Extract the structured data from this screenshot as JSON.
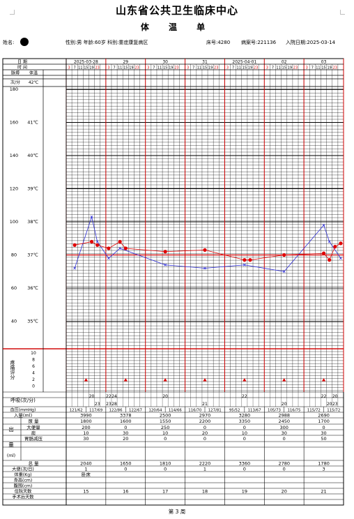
{
  "header": {
    "hospital": "山东省公共卫生临床中心",
    "title": "体 温 单",
    "patient": {
      "name_label": "姓名:",
      "sex_age_dept": "性别:男 年龄:60岁 科别:重症康复病区",
      "bed": "床号:4280",
      "record_no": "病案号:221136",
      "admit_date": "入院日期:2025-03-14"
    }
  },
  "row_labels": {
    "date": "日 期",
    "time": "时 间",
    "pulse_temp": [
      "脉搏",
      "体温"
    ],
    "units": [
      "次/分",
      "42℃"
    ],
    "pain": "疼痛评分",
    "resp": "呼吸(次/分)",
    "bp": "血压(mmHg)",
    "intake": "入量(ml)",
    "output": "出量(ml)",
    "total": "总 量",
    "stool": "大便(次/日)",
    "weight": "体重(Kg)",
    "height": "身高(cm)",
    "abdomen": "腹围(cm)",
    "hosp_days": "住院天数",
    "post_op_days": "手术后天数"
  },
  "output_items": [
    "尿 量",
    "大便量",
    "痰",
    "胃肠减压"
  ],
  "days": [
    "2025-03-28",
    "29",
    "30",
    "31",
    "2025-04-01",
    "02",
    "03"
  ],
  "hours": [
    "3",
    "7",
    "11",
    "15",
    "19",
    "23"
  ],
  "pulse_scale": [
    "180",
    "160",
    "140",
    "120",
    "100",
    "80",
    "60",
    "40"
  ],
  "temp_scale": [
    "42℃",
    "41℃",
    "40℃",
    "39℃",
    "38℃",
    "37℃",
    "36℃",
    "35℃"
  ],
  "pain_scale": [
    "10",
    "8",
    "6",
    "4",
    "2",
    "0"
  ],
  "temperature": [
    {
      "day": 0,
      "slot": 1,
      "value": 37.3
    },
    {
      "day": 0,
      "slot": 4,
      "value": 37.4
    },
    {
      "day": 0,
      "slot": 5,
      "value": 37.3
    },
    {
      "day": 1,
      "slot": 0,
      "value": 37.2
    },
    {
      "day": 1,
      "slot": 2,
      "value": 37.4
    },
    {
      "day": 1,
      "slot": 3,
      "value": 37.2
    },
    {
      "day": 2,
      "slot": 3,
      "value": 37.1
    },
    {
      "day": 3,
      "slot": 3,
      "value": 37.15
    },
    {
      "day": 4,
      "slot": 3,
      "value": 36.85
    },
    {
      "day": 4,
      "slot": 4,
      "value": 36.85
    },
    {
      "day": 5,
      "slot": 3,
      "value": 37.0
    },
    {
      "day": 6,
      "slot": 3,
      "value": 37.05
    },
    {
      "day": 6,
      "slot": 4,
      "value": 36.85
    },
    {
      "day": 6,
      "slot": 5,
      "value": 37.25
    },
    {
      "day": 6,
      "slot": 6,
      "value": 37.35
    }
  ],
  "pulse": [
    {
      "day": 0,
      "slot": 1,
      "value": 72
    },
    {
      "day": 0,
      "slot": 4,
      "value": 103
    },
    {
      "day": 0,
      "slot": 5,
      "value": 88
    },
    {
      "day": 1,
      "slot": 0,
      "value": 78
    },
    {
      "day": 1,
      "slot": 2,
      "value": 84
    },
    {
      "day": 2,
      "slot": 3,
      "value": 74
    },
    {
      "day": 3,
      "slot": 3,
      "value": 72
    },
    {
      "day": 4,
      "slot": 3,
      "value": 74
    },
    {
      "day": 5,
      "slot": 3,
      "value": 70
    },
    {
      "day": 6,
      "slot": 3,
      "value": 98
    },
    {
      "day": 6,
      "slot": 4,
      "value": 88
    },
    {
      "day": 6,
      "slot": 6,
      "value": 78
    }
  ],
  "pain": [
    {
      "day": 0,
      "slot": 3,
      "value": 2
    },
    {
      "day": 1,
      "slot": 3,
      "value": 2
    },
    {
      "day": 2,
      "slot": 3,
      "value": 2
    },
    {
      "day": 3,
      "slot": 3,
      "value": 2
    },
    {
      "day": 4,
      "slot": 3,
      "value": 2
    },
    {
      "day": 5,
      "slot": 3,
      "value": 2
    },
    {
      "day": 6,
      "slot": 3,
      "value": 2
    }
  ],
  "resp": [
    {
      "day": 0,
      "slot": 4,
      "value": "20",
      "row": 0
    },
    {
      "day": 0,
      "slot": 5,
      "value": "23",
      "row": 1
    },
    {
      "day": 1,
      "slot": 0,
      "value": "22",
      "row": 0
    },
    {
      "day": 1,
      "slot": 0,
      "value": "23",
      "row": 1
    },
    {
      "day": 1,
      "slot": 1,
      "value": "24",
      "row": 0
    },
    {
      "day": 1,
      "slot": 1,
      "value": "28",
      "row": 1
    },
    {
      "day": 2,
      "slot": 3,
      "value": "20",
      "row": 0
    },
    {
      "day": 3,
      "slot": 3,
      "value": "21",
      "row": 1
    },
    {
      "day": 4,
      "slot": 3,
      "value": "22",
      "row": 0
    },
    {
      "day": 5,
      "slot": 3,
      "value": "20",
      "row": 1
    },
    {
      "day": 6,
      "slot": 3,
      "value": "22",
      "row": 0
    },
    {
      "day": 6,
      "slot": 4,
      "value": "20",
      "row": 1
    },
    {
      "day": 6,
      "slot": 5,
      "value": "20",
      "row": 0
    },
    {
      "day": 6,
      "slot": 5,
      "value": "23",
      "row": 1
    }
  ],
  "bp": [
    "121/62",
    "117/69",
    "122/86",
    "122/67",
    "120/64",
    "114/66",
    "116/70",
    "127/81",
    "95/52",
    "113/67",
    "105/73",
    "116/75",
    "115/72",
    "115/72"
  ],
  "intake": [
    "3990",
    "3378",
    "2500",
    "2970",
    "3280",
    "2988",
    "2690"
  ],
  "urine": [
    "1800",
    "1600",
    "1550",
    "2200",
    "3350",
    "2450",
    "1700"
  ],
  "stool_volume": [
    "200",
    "0",
    "250",
    "0",
    "0",
    "300",
    "0"
  ],
  "sputum": [
    "10",
    "30",
    "10",
    "20",
    "10",
    "30",
    "30"
  ],
  "gastric": [
    "30",
    "20",
    "0",
    "0",
    "0",
    "0",
    "50"
  ],
  "total_output": [
    "2040",
    "1650",
    "1810",
    "2220",
    "3360",
    "2780",
    "1780"
  ],
  "stool_count": [
    "1",
    "0",
    "0",
    "1",
    "0",
    "0",
    "3"
  ],
  "weight": [
    "卧床",
    "",
    "",
    "",
    "",
    "",
    ""
  ],
  "hosp_days": [
    "15",
    "16",
    "17",
    "18",
    "19",
    "20",
    "21"
  ],
  "footer": "第 3 周",
  "colors": {
    "temperature": "#e00000",
    "pulse": "#2b2bd6",
    "day_line": "#d00000",
    "grid": "#000000"
  }
}
